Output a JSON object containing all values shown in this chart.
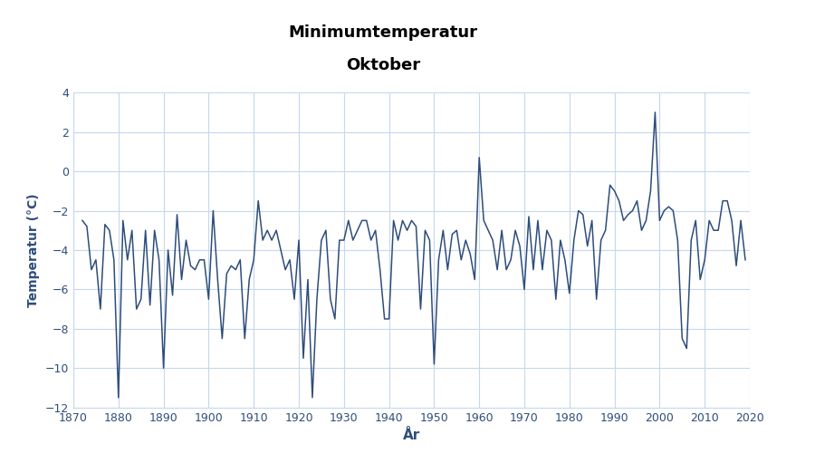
{
  "title_line1": "Minimumtemperatur",
  "title_line2": "Oktober",
  "xlabel": "År",
  "ylabel": "Temperatur (°C)",
  "line_color": "#2e4d7b",
  "background_color": "#ffffff",
  "plot_bg_color": "#ffffff",
  "grid_color": "#c5d8ed",
  "tick_color": "#2e4d7b",
  "label_color": "#2e4d7b",
  "xlim": [
    1870,
    2020
  ],
  "ylim": [
    -12,
    4
  ],
  "yticks": [
    -12,
    -10,
    -8,
    -6,
    -4,
    -2,
    0,
    2,
    4
  ],
  "xticks": [
    1870,
    1880,
    1890,
    1900,
    1910,
    1920,
    1930,
    1940,
    1950,
    1960,
    1970,
    1980,
    1990,
    2000,
    2010,
    2020
  ],
  "dmi_logo_color": "#1a3580",
  "years": [
    1872,
    1873,
    1874,
    1875,
    1876,
    1877,
    1878,
    1879,
    1880,
    1881,
    1882,
    1883,
    1884,
    1885,
    1886,
    1887,
    1888,
    1889,
    1890,
    1891,
    1892,
    1893,
    1894,
    1895,
    1896,
    1897,
    1898,
    1899,
    1900,
    1901,
    1902,
    1903,
    1904,
    1905,
    1906,
    1907,
    1908,
    1909,
    1910,
    1911,
    1912,
    1913,
    1914,
    1915,
    1916,
    1917,
    1918,
    1919,
    1920,
    1921,
    1922,
    1923,
    1924,
    1925,
    1926,
    1927,
    1928,
    1929,
    1930,
    1931,
    1932,
    1933,
    1934,
    1935,
    1936,
    1937,
    1938,
    1939,
    1940,
    1941,
    1942,
    1943,
    1944,
    1945,
    1946,
    1947,
    1948,
    1949,
    1950,
    1951,
    1952,
    1953,
    1954,
    1955,
    1956,
    1957,
    1958,
    1959,
    1960,
    1961,
    1962,
    1963,
    1964,
    1965,
    1966,
    1967,
    1968,
    1969,
    1970,
    1971,
    1972,
    1973,
    1974,
    1975,
    1976,
    1977,
    1978,
    1979,
    1980,
    1981,
    1982,
    1983,
    1984,
    1985,
    1986,
    1987,
    1988,
    1989,
    1990,
    1991,
    1992,
    1993,
    1994,
    1995,
    1996,
    1997,
    1998,
    1999,
    2000,
    2001,
    2002,
    2003,
    2004,
    2005,
    2006,
    2007,
    2008,
    2009,
    2010,
    2011,
    2012,
    2013,
    2014,
    2015,
    2016,
    2017,
    2018,
    2019
  ],
  "temps": [
    -2.5,
    -2.8,
    -5.0,
    -4.5,
    -7.0,
    -2.7,
    -3.0,
    -4.5,
    -11.5,
    -2.5,
    -4.5,
    -3.0,
    -7.0,
    -6.5,
    -3.0,
    -6.8,
    -3.0,
    -4.5,
    -10.0,
    -4.0,
    -6.3,
    -2.2,
    -5.5,
    -3.5,
    -4.8,
    -5.0,
    -4.5,
    -4.5,
    -6.5,
    -2.0,
    -5.5,
    -8.5,
    -5.2,
    -4.8,
    -5.0,
    -4.5,
    -8.5,
    -5.5,
    -4.5,
    -1.5,
    -3.5,
    -3.0,
    -3.5,
    -3.0,
    -4.0,
    -5.0,
    -4.5,
    -6.5,
    -3.5,
    -9.5,
    -5.5,
    -11.5,
    -6.5,
    -3.5,
    -3.0,
    -6.5,
    -7.5,
    -3.5,
    -3.5,
    -2.5,
    -3.5,
    -3.0,
    -2.5,
    -2.5,
    -3.5,
    -3.0,
    -5.0,
    -7.5,
    -7.5,
    -2.5,
    -3.5,
    -2.5,
    -3.0,
    -2.5,
    -2.8,
    -7.0,
    -3.0,
    -3.5,
    -9.8,
    -4.5,
    -3.0,
    -5.0,
    -3.2,
    -3.0,
    -4.5,
    -3.5,
    -4.2,
    -5.5,
    0.7,
    -2.5,
    -3.0,
    -3.5,
    -5.0,
    -3.0,
    -5.0,
    -4.5,
    -3.0,
    -3.8,
    -6.0,
    -2.3,
    -5.0,
    -2.5,
    -5.0,
    -3.0,
    -3.5,
    -6.5,
    -3.5,
    -4.5,
    -6.2,
    -3.5,
    -2.0,
    -2.2,
    -3.8,
    -2.5,
    -6.5,
    -3.5,
    -3.0,
    -0.7,
    -1.0,
    -1.5,
    -2.5,
    -2.2,
    -2.0,
    -1.5,
    -3.0,
    -2.5,
    -1.0,
    3.0,
    -2.5,
    -2.0,
    -1.8,
    -2.0,
    -3.5,
    -8.5,
    -9.0,
    -3.5,
    -2.5,
    -5.5,
    -4.5,
    -2.5,
    -3.0,
    -3.0,
    -1.5,
    -1.5,
    -2.5,
    -4.8,
    -2.5,
    -4.5
  ]
}
